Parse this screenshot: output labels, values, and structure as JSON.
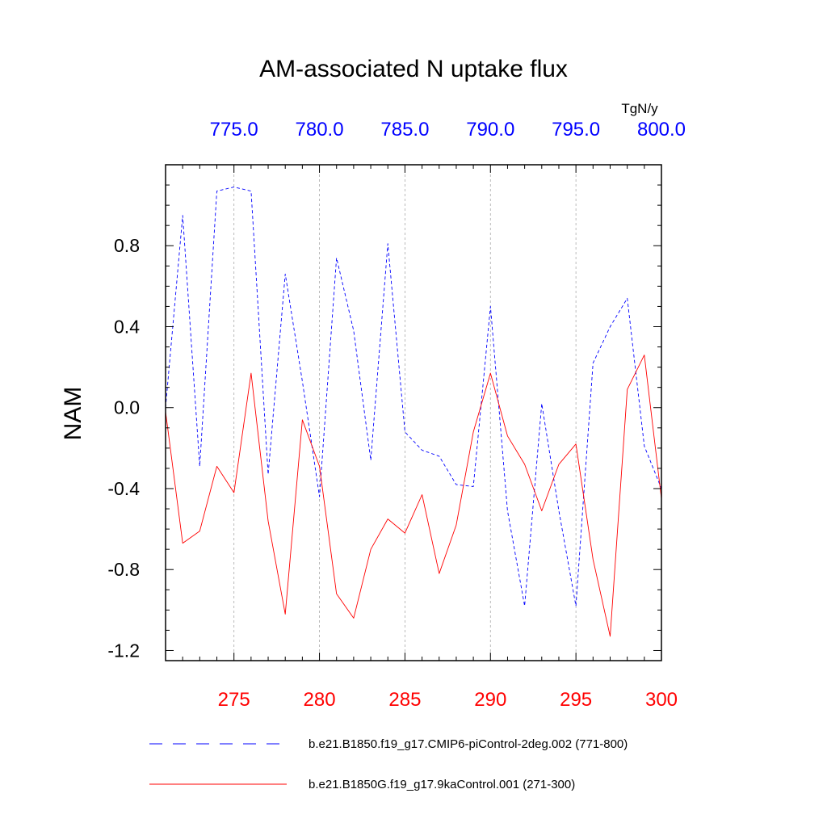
{
  "chart_data": {
    "type": "line",
    "title": "AM-associated N uptake flux",
    "ylabel": "NAM",
    "top_axis_units": "TgN/y",
    "ylim": [
      -1.25,
      1.2
    ],
    "yticks": [
      0.8,
      0.4,
      0.0,
      -0.4,
      -0.8,
      -1.2
    ],
    "ytick_labels": [
      "0.8",
      "0.4",
      "0.0",
      "-0.4",
      "-0.8",
      "-1.2"
    ],
    "grid_x": true,
    "bottom_axis": {
      "range": [
        271,
        300
      ],
      "ticks": [
        275,
        280,
        285,
        290,
        295,
        300
      ],
      "labels": [
        "275",
        "280",
        "285",
        "290",
        "295",
        "300"
      ],
      "color": "#ff0000"
    },
    "top_axis": {
      "range": [
        771,
        800
      ],
      "ticks": [
        775,
        780,
        785,
        790,
        795,
        800
      ],
      "labels": [
        "775.0",
        "780.0",
        "785.0",
        "790.0",
        "795.0",
        "800.0"
      ],
      "color": "#0000ff"
    },
    "series": [
      {
        "name": "b.e21.B1850.f19_g17.CMIP6-piControl-2deg.002 (771-800)",
        "color": "#0000ff",
        "style": "dashed",
        "axis": "top",
        "x": [
          771,
          772,
          773,
          774,
          775,
          776,
          777,
          778,
          779,
          780,
          781,
          782,
          783,
          784,
          785,
          786,
          787,
          788,
          789,
          790,
          791,
          792,
          793,
          794,
          795,
          796,
          797,
          798,
          799,
          800
        ],
        "values": [
          0.0,
          0.95,
          -0.29,
          1.07,
          1.09,
          1.07,
          -0.33,
          0.66,
          0.13,
          -0.44,
          0.74,
          0.38,
          -0.26,
          0.81,
          -0.12,
          -0.21,
          -0.24,
          -0.38,
          -0.39,
          0.5,
          -0.51,
          -0.98,
          0.02,
          -0.51,
          -0.98,
          0.22,
          0.4,
          0.54,
          -0.19,
          -0.4
        ]
      },
      {
        "name": "b.e21.B1850G.f19_g17.9kaControl.001 (271-300)",
        "color": "#ff0000",
        "style": "solid",
        "axis": "bottom",
        "x": [
          271,
          272,
          273,
          274,
          275,
          276,
          277,
          278,
          279,
          280,
          281,
          282,
          283,
          284,
          285,
          286,
          287,
          288,
          289,
          290,
          291,
          292,
          293,
          294,
          295,
          296,
          297,
          298,
          299,
          300
        ],
        "values": [
          -0.02,
          -0.67,
          -0.61,
          -0.29,
          -0.42,
          0.17,
          -0.56,
          -1.02,
          -0.06,
          -0.29,
          -0.92,
          -1.04,
          -0.7,
          -0.55,
          -0.62,
          -0.43,
          -0.82,
          -0.58,
          -0.12,
          0.17,
          -0.14,
          -0.28,
          -0.51,
          -0.28,
          -0.18,
          -0.75,
          -1.13,
          0.09,
          0.26,
          -0.45
        ]
      }
    ]
  }
}
